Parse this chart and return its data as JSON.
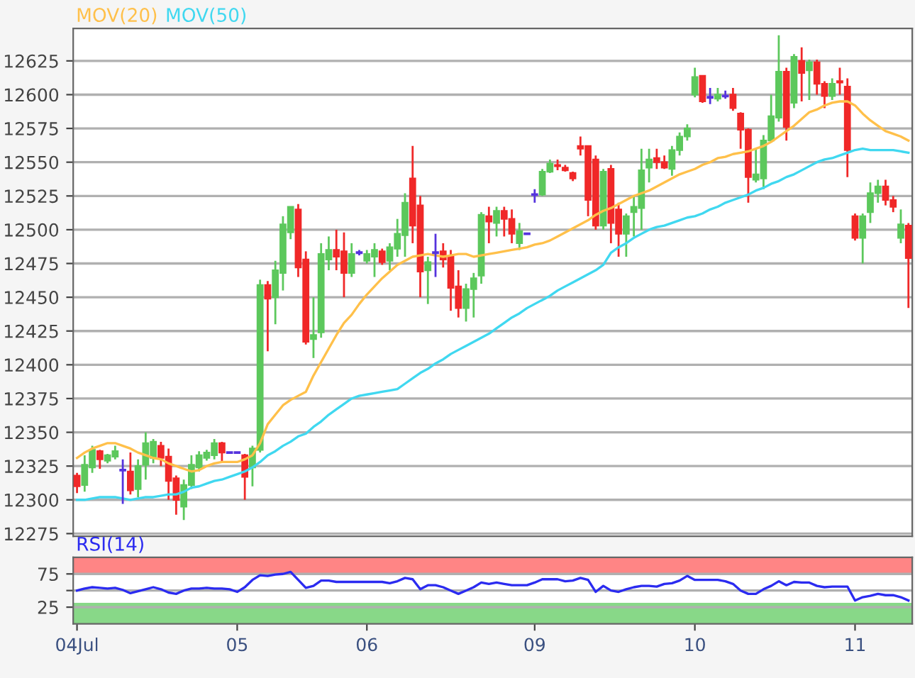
{
  "chart_data": [
    {
      "type": "candlestick",
      "categories": [
        null,
        null,
        null,
        null,
        null,
        null,
        null,
        null,
        null,
        null,
        null,
        null,
        null,
        null,
        null,
        null,
        null,
        null,
        null,
        null,
        null,
        null,
        null,
        null,
        null,
        null,
        null,
        null,
        null,
        null,
        null,
        null,
        null,
        null,
        null,
        null,
        null,
        null,
        null,
        null,
        null,
        null,
        null,
        null,
        null,
        null,
        null,
        null,
        null,
        null,
        null,
        null,
        null,
        null,
        null,
        null,
        null,
        null,
        null,
        null,
        null,
        null,
        null,
        null,
        null,
        null,
        null,
        null,
        null,
        null,
        null,
        null,
        null,
        null,
        null,
        null,
        null,
        null,
        null,
        null,
        null,
        null,
        null,
        null,
        null,
        null,
        null,
        null,
        null,
        null,
        null,
        null,
        null,
        null,
        null,
        null,
        null,
        null,
        null,
        null,
        null,
        null,
        null,
        null,
        null,
        null,
        null,
        null,
        null,
        null
      ],
      "ohlc": [
        [
          12318,
          12320,
          12305,
          12310
        ],
        [
          12311,
          12333,
          12306,
          12326
        ],
        [
          12324,
          12340,
          12320,
          12337
        ],
        [
          12336,
          12337,
          12323,
          12330
        ],
        [
          12329,
          12334,
          12327,
          12333
        ],
        [
          12332,
          12340,
          12330,
          12336
        ],
        [
          12322,
          12330,
          12297,
          12322
        ],
        [
          12321,
          12335,
          12304,
          12307
        ],
        [
          12308,
          12330,
          12302,
          12325
        ],
        [
          12326,
          12350,
          12315,
          12342
        ],
        [
          12331,
          12345,
          12327,
          12343
        ],
        [
          12340,
          12343,
          12325,
          12331
        ],
        [
          12332,
          12338,
          12300,
          12314
        ],
        [
          12316,
          12318,
          12289,
          12300
        ],
        [
          12295,
          12315,
          12285,
          12311
        ],
        [
          12311,
          12333,
          12308,
          12326
        ],
        [
          12324,
          12336,
          12321,
          12333
        ],
        [
          12331,
          12337,
          12329,
          12335
        ],
        [
          12333,
          12345,
          12330,
          12342
        ],
        [
          12342,
          12343,
          12328,
          12335
        ],
        [
          12335,
          12335,
          12335,
          12335
        ],
        [
          12335,
          12335,
          12335,
          12335
        ],
        [
          12333,
          12334,
          12300,
          12317
        ],
        [
          12324,
          12340,
          12310,
          12338
        ],
        [
          12337,
          12463,
          12335,
          12459
        ],
        [
          12459,
          12462,
          12410,
          12449
        ],
        [
          12450,
          12477,
          12430,
          12470
        ],
        [
          12468,
          12510,
          12455,
          12504
        ],
        [
          12498,
          12517,
          12493,
          12517
        ],
        [
          12515,
          12519,
          12465,
          12472
        ],
        [
          12478,
          12484,
          12415,
          12417
        ],
        [
          12419,
          12450,
          12405,
          12422
        ],
        [
          12424,
          12490,
          12420,
          12482
        ],
        [
          12478,
          12495,
          12470,
          12485
        ],
        [
          12485,
          12500,
          12470,
          12480
        ],
        [
          12484,
          12498,
          12450,
          12468
        ],
        [
          12468,
          12490,
          12465,
          12482
        ],
        [
          12483,
          12485,
          12481,
          12483
        ],
        [
          12477,
          12485,
          12475,
          12482
        ],
        [
          12480,
          12490,
          12465,
          12485
        ],
        [
          12484,
          12486,
          12474,
          12476
        ],
        [
          12477,
          12490,
          12470,
          12487
        ],
        [
          12486,
          12508,
          12480,
          12497
        ],
        [
          12496,
          12527,
          12480,
          12520
        ],
        [
          12538,
          12562,
          12490,
          12503
        ],
        [
          12518,
          12525,
          12450,
          12469
        ],
        [
          12470,
          12480,
          12445,
          12476
        ],
        [
          12483,
          12497,
          12465,
          12483
        ],
        [
          12484,
          12490,
          12472,
          12478
        ],
        [
          12480,
          12485,
          12440,
          12457
        ],
        [
          12458,
          12470,
          12435,
          12442
        ],
        [
          12442,
          12460,
          12432,
          12456
        ],
        [
          12456,
          12468,
          12435,
          12464
        ],
        [
          12466,
          12513,
          12460,
          12511
        ],
        [
          12510,
          12517,
          12490,
          12506
        ],
        [
          12505,
          12517,
          12495,
          12514
        ],
        [
          12514,
          12517,
          12495,
          12508
        ],
        [
          12508,
          12515,
          12490,
          12497
        ],
        [
          12490,
          12505,
          12485,
          12499
        ],
        [
          12497,
          12497,
          12497,
          12497
        ],
        [
          12526,
          12530,
          12520,
          12526
        ],
        [
          12526,
          12545,
          12525,
          12543
        ],
        [
          12543,
          12552,
          12542,
          12549
        ],
        [
          12548,
          12552,
          12544,
          12547
        ],
        [
          12546,
          12548,
          12543,
          12544
        ],
        [
          12542,
          12543,
          12536,
          12538
        ],
        [
          12562,
          12569,
          12555,
          12560
        ],
        [
          12562,
          12562,
          12510,
          12522
        ],
        [
          12552,
          12555,
          12500,
          12503
        ],
        [
          12503,
          12545,
          12500,
          12543
        ],
        [
          12545,
          12548,
          12490,
          12505
        ],
        [
          12515,
          12520,
          12480,
          12497
        ],
        [
          12497,
          12512,
          12480,
          12510
        ],
        [
          12513,
          12525,
          12495,
          12517
        ],
        [
          12516,
          12560,
          12500,
          12544
        ],
        [
          12546,
          12560,
          12535,
          12552
        ],
        [
          12553,
          12560,
          12545,
          12550
        ],
        [
          12550,
          12555,
          12545,
          12546
        ],
        [
          12545,
          12562,
          12540,
          12559
        ],
        [
          12559,
          12572,
          12555,
          12569
        ],
        [
          12569,
          12578,
          12566,
          12575
        ],
        [
          12600,
          12620,
          12598,
          12613
        ],
        [
          12614,
          12614,
          12594,
          12595
        ],
        [
          12598,
          12605,
          12593,
          12598
        ],
        [
          12597,
          12605,
          12595,
          12600
        ],
        [
          12599,
          12603,
          12597,
          12599
        ],
        [
          12600,
          12605,
          12588,
          12590
        ],
        [
          12586,
          12587,
          12560,
          12574
        ],
        [
          12574,
          12575,
          12520,
          12539
        ],
        [
          12537,
          12560,
          12535,
          12541
        ],
        [
          12538,
          12570,
          12530,
          12566
        ],
        [
          12566,
          12600,
          12565,
          12584
        ],
        [
          12583,
          12644,
          12580,
          12617
        ],
        [
          12617,
          12620,
          12566,
          12576
        ],
        [
          12594,
          12630,
          12590,
          12628
        ],
        [
          12625,
          12635,
          12595,
          12616
        ],
        [
          12618,
          12626,
          12596,
          12624
        ],
        [
          12624,
          12626,
          12600,
          12608
        ],
        [
          12608,
          12610,
          12590,
          12599
        ],
        [
          12599,
          12612,
          12596,
          12608
        ],
        [
          12610,
          12620,
          12600,
          12609
        ],
        [
          12606,
          12612,
          12539,
          12559
        ],
        [
          12510,
          12512,
          12492,
          12494
        ],
        [
          12494,
          12512,
          12475,
          12510
        ],
        [
          12513,
          12535,
          12505,
          12527
        ],
        [
          12527,
          12537,
          12520,
          12532
        ],
        [
          12532,
          12537,
          12518,
          12522
        ],
        [
          12522,
          12525,
          12513,
          12517
        ],
        [
          12494,
          12515,
          12490,
          12504
        ],
        [
          12503,
          12505,
          12442,
          12479
        ]
      ],
      "colors": [
        "#f02828",
        "#5cc85c",
        "#5cc85c",
        "#f02828",
        "#5cc85c",
        "#5cc85c",
        "#5533dd",
        "#f02828",
        "#5cc85c",
        "#5cc85c",
        "#5cc85c",
        "#f02828",
        "#f02828",
        "#f02828",
        "#5cc85c",
        "#5cc85c",
        "#5cc85c",
        "#5cc85c",
        "#5cc85c",
        "#f02828",
        "#5533dd",
        "#5533dd",
        "#f02828",
        "#5cc85c",
        "#5cc85c",
        "#f02828",
        "#5cc85c",
        "#5cc85c",
        "#5cc85c",
        "#f02828",
        "#f02828",
        "#5cc85c",
        "#5cc85c",
        "#5cc85c",
        "#f02828",
        "#f02828",
        "#5cc85c",
        "#5533dd",
        "#5cc85c",
        "#5cc85c",
        "#f02828",
        "#5cc85c",
        "#5cc85c",
        "#5cc85c",
        "#f02828",
        "#f02828",
        "#5cc85c",
        "#5533dd",
        "#f02828",
        "#f02828",
        "#f02828",
        "#5cc85c",
        "#5cc85c",
        "#5cc85c",
        "#f02828",
        "#5cc85c",
        "#f02828",
        "#f02828",
        "#5cc85c",
        "#5533dd",
        "#5533dd",
        "#5cc85c",
        "#5cc85c",
        "#f02828",
        "#f02828",
        "#f02828",
        "#f02828",
        "#f02828",
        "#f02828",
        "#5cc85c",
        "#f02828",
        "#f02828",
        "#5cc85c",
        "#5cc85c",
        "#5cc85c",
        "#5cc85c",
        "#f02828",
        "#f02828",
        "#5cc85c",
        "#5cc85c",
        "#5cc85c",
        "#5cc85c",
        "#f02828",
        "#5533dd",
        "#5cc85c",
        "#5533dd",
        "#f02828",
        "#f02828",
        "#f02828",
        "#5cc85c",
        "#5cc85c",
        "#5cc85c",
        "#5cc85c",
        "#f02828",
        "#5cc85c",
        "#f02828",
        "#5cc85c",
        "#f02828",
        "#f02828",
        "#5cc85c",
        "#f02828",
        "#f02828",
        "#f02828",
        "#5cc85c",
        "#5cc85c",
        "#5cc85c",
        "#f02828",
        "#f02828",
        "#5cc85c",
        "#f02828"
      ],
      "series": [
        {
          "name": "MOV(20)",
          "type": "line",
          "color": "#ffc04a",
          "values": [
            12331,
            12335,
            12338,
            12340,
            12342,
            12342,
            12340,
            12338,
            12335,
            12333,
            12331,
            12330,
            12327,
            12325,
            12323,
            12321,
            12322,
            12325,
            12327,
            12328,
            12328,
            12328,
            12330,
            12333,
            12342,
            12356,
            12363,
            12370,
            12374,
            12377,
            12380,
            12392,
            12402,
            12412,
            12422,
            12431,
            12437,
            12445,
            12452,
            12458,
            12464,
            12469,
            12474,
            12477,
            12480,
            12481,
            12482,
            12481,
            12480,
            12481,
            12482,
            12482,
            12480,
            12481,
            12482,
            12483,
            12484,
            12485,
            12486,
            12487,
            12489,
            12490,
            12492,
            12495,
            12498,
            12501,
            12504,
            12507,
            12511,
            12514,
            12516,
            12519,
            12522,
            12525,
            12527,
            12529,
            12532,
            12535,
            12538,
            12541,
            12543,
            12545,
            12548,
            12550,
            12553,
            12554,
            12556,
            12557,
            12558,
            12560,
            12562,
            12565,
            12569,
            12573,
            12577,
            12582,
            12587,
            12589,
            12592,
            12594,
            12595,
            12595,
            12592,
            12586,
            12581,
            12577,
            12573,
            12571,
            12569,
            12566
          ]
        },
        {
          "name": "MOV(50)",
          "type": "line",
          "color": "#40d8f0",
          "values": [
            12300,
            12300,
            12301,
            12302,
            12302,
            12302,
            12301,
            12300,
            12301,
            12302,
            12302,
            12303,
            12304,
            12304,
            12306,
            12309,
            12310,
            12312,
            12314,
            12315,
            12317,
            12319,
            12321,
            12324,
            12328,
            12333,
            12336,
            12340,
            12343,
            12347,
            12349,
            12354,
            12358,
            12363,
            12367,
            12371,
            12375,
            12377,
            12378,
            12379,
            12380,
            12381,
            12382,
            12386,
            12390,
            12394,
            12397,
            12401,
            12404,
            12408,
            12411,
            12414,
            12417,
            12420,
            12423,
            12427,
            12431,
            12435,
            12438,
            12442,
            12445,
            12448,
            12451,
            12455,
            12458,
            12461,
            12464,
            12467,
            12470,
            12474,
            12483,
            12487,
            12490,
            12494,
            12497,
            12500,
            12502,
            12503,
            12505,
            12507,
            12509,
            12510,
            12512,
            12515,
            12517,
            12520,
            12522,
            12524,
            12526,
            12529,
            12531,
            12534,
            12536,
            12539,
            12541,
            12544,
            12547,
            12550,
            12552,
            12553,
            12555,
            12557,
            12559,
            12560,
            12559,
            12559,
            12559,
            12559,
            12558,
            12557
          ]
        }
      ],
      "ylim": [
        12273,
        12649
      ],
      "yticks": [
        12275,
        12300,
        12325,
        12350,
        12375,
        12400,
        12425,
        12450,
        12475,
        12500,
        12525,
        12550,
        12575,
        12600,
        12625
      ],
      "grid": "y",
      "legend": "top left",
      "tick_labels": "y"
    },
    {
      "type": "line",
      "categories": [
        "04Jul",
        null,
        null,
        null,
        null,
        null,
        null,
        null,
        null,
        null,
        null,
        null,
        null,
        null,
        null,
        null,
        null,
        null,
        null,
        null,
        null,
        "05",
        null,
        null,
        null,
        null,
        null,
        null,
        null,
        null,
        null,
        null,
        null,
        null,
        null,
        null,
        null,
        null,
        "06",
        null,
        null,
        null,
        null,
        null,
        null,
        null,
        null,
        null,
        null,
        null,
        null,
        null,
        null,
        null,
        null,
        null,
        null,
        null,
        null,
        null,
        "09",
        null,
        null,
        null,
        null,
        null,
        null,
        null,
        null,
        null,
        null,
        null,
        null,
        null,
        null,
        null,
        null,
        null,
        null,
        null,
        null,
        "10",
        null,
        null,
        null,
        null,
        null,
        null,
        null,
        null,
        null,
        null,
        null,
        null,
        null,
        null,
        null,
        null,
        null,
        null,
        null,
        null,
        "11",
        null,
        null,
        null,
        null,
        null,
        null,
        null
      ],
      "series": [
        {
          "name": "RSI(14)",
          "color": "#2b2bf0",
          "values": [
            50,
            53,
            55,
            54,
            53,
            54,
            51,
            46,
            49,
            52,
            55,
            52,
            47,
            45,
            50,
            53,
            53,
            54,
            53,
            53,
            52,
            48,
            55,
            66,
            73,
            72,
            74,
            75,
            78,
            66,
            54,
            57,
            65,
            65,
            63,
            63,
            63,
            63,
            63,
            63,
            63,
            61,
            64,
            69,
            67,
            52,
            58,
            58,
            55,
            50,
            45,
            50,
            55,
            62,
            60,
            62,
            60,
            58,
            58,
            58,
            62,
            67,
            67,
            67,
            64,
            65,
            69,
            66,
            48,
            57,
            50,
            48,
            52,
            55,
            57,
            57,
            56,
            60,
            61,
            65,
            72,
            66,
            66,
            66,
            66,
            64,
            60,
            50,
            45,
            45,
            52,
            57,
            64,
            58,
            63,
            62,
            62,
            57,
            55,
            56,
            56,
            56,
            35,
            40,
            42,
            45,
            43,
            43,
            40,
            35
          ]
        }
      ],
      "ylim": [
        0,
        100
      ],
      "yticks": [
        25,
        {
          "value": 50,
          "label": null
        },
        75
      ],
      "bands": [
        {
          "axis": "y",
          "from": 75,
          "to": 100,
          "color": "#ff8585"
        },
        {
          "axis": "y",
          "from": 0,
          "to": 30,
          "color": "#88d888"
        }
      ],
      "grid": "y",
      "legend": "top left"
    }
  ]
}
